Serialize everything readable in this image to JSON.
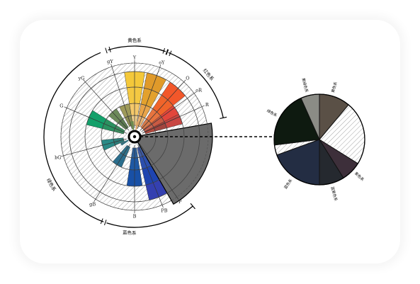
{
  "wheel": {
    "hue_labels": [
      "R",
      "oR",
      "O",
      "oY",
      "Y",
      "gY",
      "yG",
      "G",
      "bG",
      "gB",
      "B",
      "PB",
      "P"
    ],
    "group_labels": {
      "yellow_group": "黄色系",
      "red_group": "红色系",
      "green_group": "绿色系",
      "blue_group": "蓝色系"
    },
    "selected_sector_color": "#6b6b6b"
  },
  "pie": {
    "segments": [
      {
        "label": "黄色系",
        "color": "#5a5046"
      },
      {
        "label": "",
        "color": "hatched"
      },
      {
        "label": "紫色系",
        "color": "#3d2f3a"
      },
      {
        "label": "蓝紫色系",
        "color": "#25292f"
      },
      {
        "label": "蓝色系",
        "color": "#232d43"
      },
      {
        "label": "",
        "color": "hatched"
      },
      {
        "label": "绿色系",
        "color": "#0e1a10"
      },
      {
        "label": "黄绿色系",
        "color": "#8b8c86"
      }
    ]
  }
}
